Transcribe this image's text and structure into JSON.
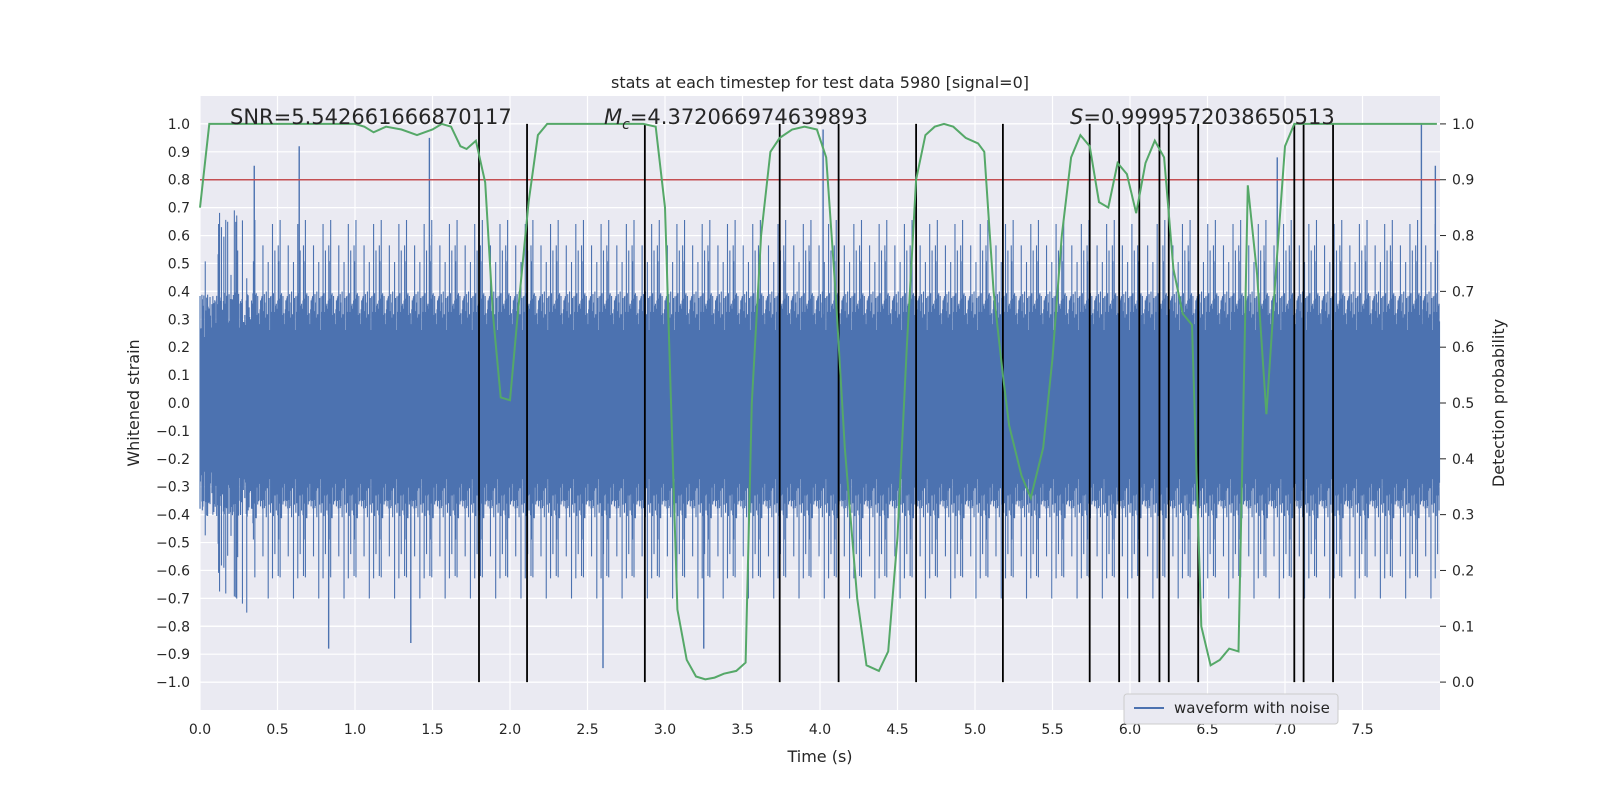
{
  "chart_data": {
    "type": "line",
    "title": "stats at each timestep for test data 5980 [signal=0]",
    "xlabel": "Time (s)",
    "ylabel": "Whitened strain",
    "y2label": "Detection probability",
    "xlim": [
      0,
      8
    ],
    "ylim": [
      -1.1,
      1.1
    ],
    "y2lim": [
      -0.05,
      1.05
    ],
    "xticks": [
      0.0,
      0.5,
      1.0,
      1.5,
      2.0,
      2.5,
      3.0,
      3.5,
      4.0,
      4.5,
      5.0,
      5.5,
      6.0,
      6.5,
      7.0,
      7.5
    ],
    "xtick_labels": [
      "0.0",
      "0.5",
      "1.0",
      "1.5",
      "2.0",
      "2.5",
      "3.0",
      "3.5",
      "4.0",
      "4.5",
      "5.0",
      "5.5",
      "6.0",
      "6.5",
      "7.0",
      "7.5"
    ],
    "yticks": [
      -1.0,
      -0.9,
      -0.8,
      -0.7,
      -0.6,
      -0.5,
      -0.4,
      -0.3,
      -0.2,
      -0.1,
      0.0,
      0.1,
      0.2,
      0.3,
      0.4,
      0.5,
      0.6,
      0.7,
      0.8,
      0.9,
      1.0
    ],
    "ytick_labels": [
      "−1.0",
      "−0.9",
      "−0.8",
      "−0.7",
      "−0.6",
      "−0.5",
      "−0.4",
      "−0.3",
      "−0.2",
      "−0.1",
      "0.0",
      "0.1",
      "0.2",
      "0.3",
      "0.4",
      "0.5",
      "0.6",
      "0.7",
      "0.8",
      "0.9",
      "1.0"
    ],
    "y2ticks": [
      0.0,
      0.1,
      0.2,
      0.3,
      0.4,
      0.5,
      0.6,
      0.7,
      0.8,
      0.9,
      1.0
    ],
    "y2tick_labels": [
      "0.0",
      "0.1",
      "0.2",
      "0.3",
      "0.4",
      "0.5",
      "0.6",
      "0.7",
      "0.8",
      "0.9",
      "1.0"
    ],
    "grid": true,
    "legend_position": "bottom-right",
    "annotations": {
      "snr": "SNR=5.542661666870117",
      "mc": "=4.372066974639893",
      "mc_symbol": "M",
      "mc_sub": "c",
      "s": "=0.9999572038650513",
      "s_symbol": "S"
    },
    "threshold": 0.9,
    "detection_events": [
      1.8,
      2.11,
      2.87,
      3.74,
      4.12,
      4.62,
      5.18,
      5.74,
      5.93,
      6.06,
      6.19,
      6.25,
      6.44,
      7.06,
      7.12,
      7.31
    ],
    "series": [
      {
        "name": "waveform with noise",
        "color": "#4c72b0",
        "envelope": "noise with amplitude mostly within ±0.4 and spikes up to about ±1.0",
        "spikes": [
          [
            0.35,
            0.85
          ],
          [
            0.64,
            0.92
          ],
          [
            0.83,
            -0.88
          ],
          [
            1.36,
            -0.86
          ],
          [
            1.48,
            0.95
          ],
          [
            2.6,
            -0.95
          ],
          [
            3.25,
            -0.88
          ],
          [
            4.02,
            0.98
          ],
          [
            5.74,
            -0.95
          ],
          [
            6.95,
            0.88
          ],
          [
            7.88,
            1.0
          ],
          [
            7.97,
            0.85
          ]
        ]
      },
      {
        "name": "",
        "color": "#55a868",
        "axis": "y2",
        "x": [
          0.0,
          0.06,
          0.2,
          0.4,
          0.6,
          0.8,
          1.0,
          1.06,
          1.12,
          1.2,
          1.3,
          1.4,
          1.5,
          1.56,
          1.62,
          1.68,
          1.72,
          1.78,
          1.84,
          1.89,
          1.94,
          2.0,
          2.05,
          2.12,
          2.18,
          2.24,
          2.4,
          2.6,
          2.86,
          2.94,
          3.0,
          3.08,
          3.14,
          3.2,
          3.26,
          3.32,
          3.38,
          3.46,
          3.52,
          3.56,
          3.62,
          3.68,
          3.74,
          3.82,
          3.9,
          3.98,
          4.04,
          4.1,
          4.16,
          4.24,
          4.3,
          4.38,
          4.44,
          4.5,
          4.56,
          4.62,
          4.68,
          4.74,
          4.8,
          4.86,
          4.94,
          5.02,
          5.06,
          5.12,
          5.18,
          5.22,
          5.3,
          5.36,
          5.44,
          5.5,
          5.56,
          5.62,
          5.68,
          5.74,
          5.8,
          5.86,
          5.92,
          5.98,
          6.04,
          6.1,
          6.16,
          6.22,
          6.28,
          6.34,
          6.4,
          6.46,
          6.52,
          6.58,
          6.64,
          6.7,
          6.76,
          6.82,
          6.88,
          6.94,
          7.0,
          7.06,
          7.12,
          7.18,
          7.24,
          7.3,
          7.36,
          7.44,
          7.6,
          7.8,
          7.98
        ],
        "y": [
          0.85,
          1.0,
          1.0,
          1.0,
          1.0,
          1.0,
          1.0,
          0.995,
          0.985,
          0.995,
          0.99,
          0.98,
          0.99,
          1.0,
          0.995,
          0.96,
          0.955,
          0.97,
          0.895,
          0.66,
          0.51,
          0.505,
          0.66,
          0.86,
          0.98,
          1.0,
          1.0,
          1.0,
          1.0,
          0.995,
          0.85,
          0.13,
          0.04,
          0.01,
          0.005,
          0.008,
          0.015,
          0.02,
          0.035,
          0.5,
          0.8,
          0.95,
          0.975,
          0.99,
          0.995,
          0.99,
          0.94,
          0.7,
          0.42,
          0.15,
          0.03,
          0.02,
          0.055,
          0.26,
          0.6,
          0.9,
          0.98,
          0.995,
          1.0,
          0.995,
          0.975,
          0.965,
          0.95,
          0.7,
          0.55,
          0.46,
          0.37,
          0.33,
          0.42,
          0.58,
          0.8,
          0.94,
          0.98,
          0.96,
          0.86,
          0.85,
          0.93,
          0.91,
          0.84,
          0.93,
          0.97,
          0.94,
          0.74,
          0.66,
          0.64,
          0.1,
          0.03,
          0.04,
          0.06,
          0.055,
          0.89,
          0.73,
          0.48,
          0.73,
          0.96,
          1.0,
          1.0,
          1.0,
          1.0,
          1.0,
          1.0,
          1.0,
          1.0,
          1.0,
          1.0
        ]
      }
    ]
  }
}
